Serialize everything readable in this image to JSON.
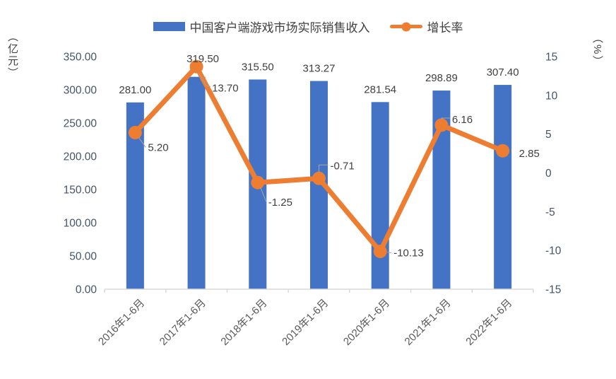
{
  "chart_data": {
    "type": "combo",
    "title": "",
    "categories": [
      "2016年1-6月",
      "2017年1-6月",
      "2018年1-6月",
      "2019年1-6月",
      "2020年1-6月",
      "2021年1-6月",
      "2022年1-6月"
    ],
    "series": [
      {
        "name": "中国客户端游戏市场实际销售收入",
        "chart": "bar",
        "axis": "left",
        "color": "#4472C4",
        "values": [
          281.0,
          319.5,
          315.5,
          313.27,
          281.54,
          298.89,
          307.4
        ]
      },
      {
        "name": "增长率",
        "chart": "line",
        "axis": "right",
        "color": "#ED7D31",
        "values": [
          5.2,
          13.7,
          -1.25,
          -0.71,
          -10.13,
          6.16,
          2.85
        ]
      }
    ],
    "left_axis": {
      "title": "（亿元）",
      "min": 0,
      "max": 350,
      "step": 50,
      "decimals": 2
    },
    "right_axis": {
      "title": "（%）",
      "min": -15,
      "max": 15,
      "step": 5,
      "decimals": 0
    },
    "legend_position": "top",
    "grid": false,
    "colors": {
      "axis_line": "#D9D9D9",
      "tick_text": "#44546A",
      "data_label": "#404040",
      "x_label": "#595959",
      "leader_line": "#A6A6A6"
    }
  }
}
